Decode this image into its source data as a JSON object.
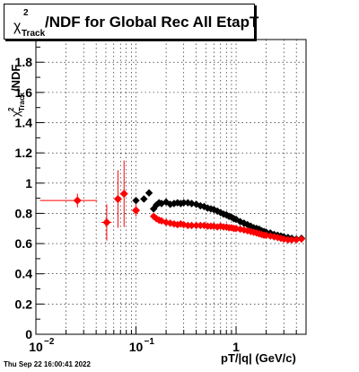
{
  "chart_data": {
    "type": "scatter",
    "title": "/NDF for Global Rec All EtapT",
    "title_symbol": "χ",
    "title_sup": "2",
    "title_sub": "Track",
    "xlabel": "pT/|q| (GeV/c)",
    "ylabel_parts": {
      "symbol": "χ",
      "sup": "2",
      "sub": "Track",
      "rest": "/NDF"
    },
    "xscale": "log",
    "xlim": [
      0.01,
      5
    ],
    "ylim": [
      0,
      1.95
    ],
    "grid": true,
    "x_tick_labels": [
      {
        "value": 0.01,
        "base": "10",
        "exp": "−2"
      },
      {
        "value": 0.1,
        "base": "10",
        "exp": "−1"
      },
      {
        "value": 1,
        "base": "1",
        "exp": ""
      }
    ],
    "y_tick_labels": [
      "0",
      "0.2",
      "0.4",
      "0.6",
      "0.8",
      "1",
      "1.2",
      "1.4",
      "1.6",
      "1.8"
    ],
    "timestamp": "Thu Sep 22 16:00:41 2022",
    "series": [
      {
        "color": "#000000",
        "points": [
          [
            0.1,
            0.885
          ],
          [
            0.12,
            0.895
          ],
          [
            0.135,
            0.935
          ],
          [
            0.15,
            0.83
          ],
          [
            0.16,
            0.855
          ],
          [
            0.17,
            0.87
          ],
          [
            0.18,
            0.865
          ],
          [
            0.2,
            0.875
          ],
          [
            0.22,
            0.86
          ],
          [
            0.24,
            0.865
          ],
          [
            0.26,
            0.87
          ],
          [
            0.28,
            0.865
          ],
          [
            0.3,
            0.87
          ],
          [
            0.33,
            0.87
          ],
          [
            0.36,
            0.865
          ],
          [
            0.4,
            0.86
          ],
          [
            0.44,
            0.85
          ],
          [
            0.48,
            0.845
          ],
          [
            0.52,
            0.835
          ],
          [
            0.56,
            0.83
          ],
          [
            0.6,
            0.825
          ],
          [
            0.65,
            0.815
          ],
          [
            0.7,
            0.805
          ],
          [
            0.75,
            0.795
          ],
          [
            0.8,
            0.79
          ],
          [
            0.85,
            0.78
          ],
          [
            0.9,
            0.775
          ],
          [
            0.95,
            0.765
          ],
          [
            1.0,
            0.76
          ],
          [
            1.1,
            0.745
          ],
          [
            1.2,
            0.735
          ],
          [
            1.3,
            0.725
          ],
          [
            1.4,
            0.715
          ],
          [
            1.5,
            0.705
          ],
          [
            1.6,
            0.7
          ],
          [
            1.7,
            0.695
          ],
          [
            1.8,
            0.685
          ],
          [
            1.9,
            0.68
          ],
          [
            2.0,
            0.675
          ],
          [
            2.2,
            0.67
          ],
          [
            2.4,
            0.66
          ],
          [
            2.6,
            0.655
          ],
          [
            2.8,
            0.65
          ],
          [
            3.0,
            0.645
          ],
          [
            3.3,
            0.64
          ],
          [
            3.6,
            0.635
          ],
          [
            4.0,
            0.63
          ],
          [
            4.5,
            0.635
          ]
        ]
      },
      {
        "color": "#ff0000",
        "points": [
          [
            0.026,
            0.885,
            0.015,
            0.045,
            0.02
          ],
          [
            0.051,
            0.74,
            0.006,
            0.12,
            0.02
          ],
          [
            0.066,
            0.895,
            0.004,
            0.19,
            0.02
          ],
          [
            0.076,
            0.93,
            0.004,
            0.22,
            0.02
          ],
          [
            0.1,
            0.82,
            0.004,
            0.04,
            0.02
          ]
        ],
        "markers": [
          [
            0.15,
            0.78
          ],
          [
            0.16,
            0.765
          ],
          [
            0.17,
            0.755
          ],
          [
            0.18,
            0.75
          ],
          [
            0.2,
            0.74
          ],
          [
            0.22,
            0.735
          ],
          [
            0.24,
            0.73
          ],
          [
            0.26,
            0.725
          ],
          [
            0.28,
            0.73
          ],
          [
            0.3,
            0.725
          ],
          [
            0.33,
            0.72
          ],
          [
            0.36,
            0.72
          ],
          [
            0.4,
            0.72
          ],
          [
            0.44,
            0.72
          ],
          [
            0.48,
            0.72
          ],
          [
            0.52,
            0.715
          ],
          [
            0.56,
            0.715
          ],
          [
            0.6,
            0.715
          ],
          [
            0.65,
            0.71
          ],
          [
            0.7,
            0.715
          ],
          [
            0.75,
            0.71
          ],
          [
            0.8,
            0.71
          ],
          [
            0.85,
            0.705
          ],
          [
            0.9,
            0.705
          ],
          [
            0.95,
            0.7
          ],
          [
            1.0,
            0.7
          ],
          [
            1.1,
            0.695
          ],
          [
            1.2,
            0.69
          ],
          [
            1.3,
            0.685
          ],
          [
            1.4,
            0.68
          ],
          [
            1.5,
            0.675
          ],
          [
            1.6,
            0.67
          ],
          [
            1.7,
            0.665
          ],
          [
            1.8,
            0.66
          ],
          [
            1.9,
            0.655
          ],
          [
            2.0,
            0.655
          ],
          [
            2.2,
            0.65
          ],
          [
            2.4,
            0.645
          ],
          [
            2.6,
            0.64
          ],
          [
            2.8,
            0.635
          ],
          [
            3.0,
            0.63
          ],
          [
            3.3,
            0.625
          ],
          [
            3.6,
            0.625
          ],
          [
            4.0,
            0.625
          ],
          [
            4.5,
            0.63
          ]
        ]
      }
    ]
  }
}
